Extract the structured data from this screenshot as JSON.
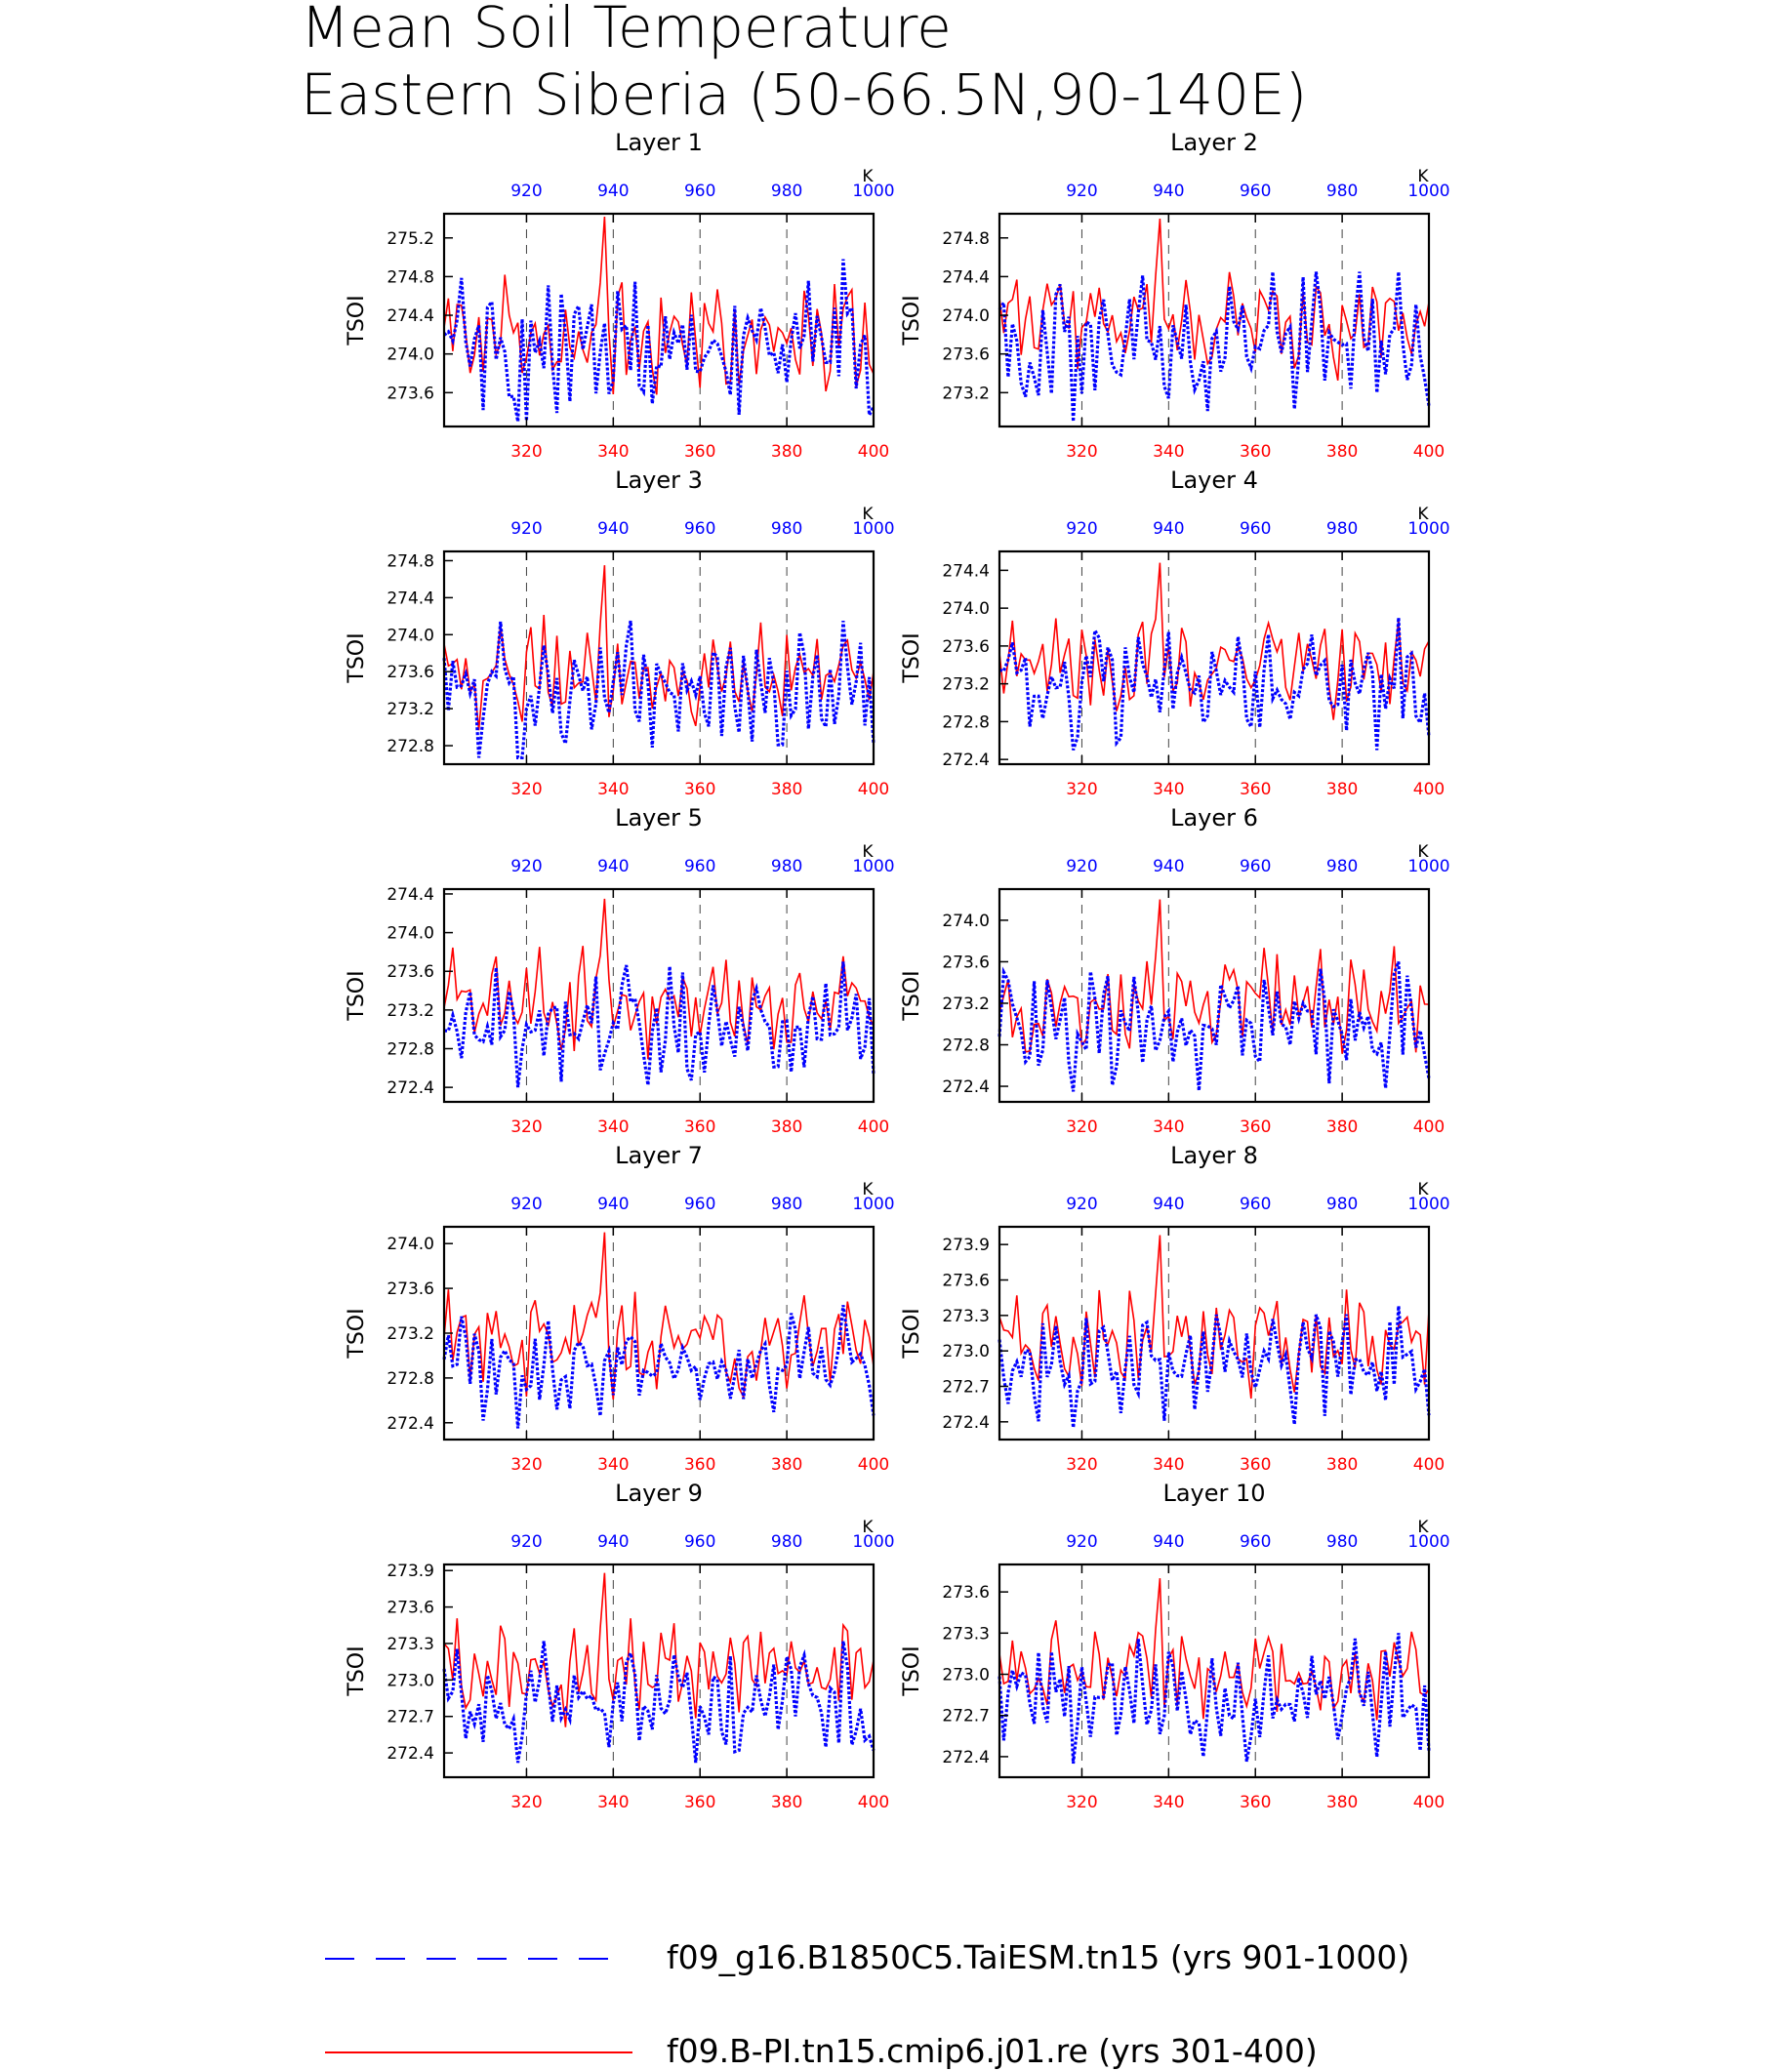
{
  "title_line1": "Mean Soil Temperature",
  "title_line2": "Eastern Siberia (50-66.5N,90-140E)",
  "legend": [
    {
      "label": "f09_g16.B1850C5.TaiESM.tn15 (yrs 901-1000)",
      "color": "#0000ff",
      "style": "dashed"
    },
    {
      "label": "f09.B-PI.tn15.cmip6.j01.re (yrs 301-400)",
      "color": "#ff0000",
      "style": "solid"
    }
  ],
  "chart_data": {
    "type": "line",
    "ylabel": "TSOI",
    "top_axis_unit": "K",
    "bottom_axis": {
      "range": [
        301,
        400
      ],
      "ticks": [
        320,
        340,
        360,
        380,
        400
      ],
      "color": "#ff0000"
    },
    "top_axis": {
      "range": [
        901,
        1000
      ],
      "ticks": [
        920,
        940,
        960,
        980,
        1000
      ],
      "color": "#0000ff"
    },
    "grid": "dashed vertical lines at 320, 340, 360, 380",
    "panels": [
      {
        "title": "Layer 1",
        "ylim": [
          273.25,
          275.45
        ],
        "yticks": [
          273.6,
          274.0,
          274.4,
          274.8,
          275.2
        ],
        "red_base": 274.18,
        "red_spike": 275.42,
        "blue_base": 274.08,
        "blue_min": 273.3,
        "blue_max": 274.98
      },
      {
        "title": "Layer 2",
        "ylim": [
          272.85,
          275.05
        ],
        "yticks": [
          273.2,
          273.6,
          274.0,
          274.4,
          274.8
        ],
        "red_base": 273.92,
        "red_spike": 275.0,
        "blue_base": 273.72,
        "blue_min": 272.9,
        "blue_max": 274.45
      },
      {
        "title": "Layer 3",
        "ylim": [
          272.6,
          274.9
        ],
        "yticks": [
          272.8,
          273.2,
          273.6,
          274.0,
          274.4,
          274.8
        ],
        "red_base": 273.6,
        "red_spike": 274.75,
        "blue_base": 273.4,
        "blue_min": 272.67,
        "blue_max": 274.15
      },
      {
        "title": "Layer 4",
        "ylim": [
          272.35,
          274.6
        ],
        "yticks": [
          272.4,
          272.8,
          273.2,
          273.6,
          274.0,
          274.4
        ],
        "red_base": 273.4,
        "red_spike": 274.48,
        "blue_base": 273.2,
        "blue_min": 272.5,
        "blue_max": 273.9
      },
      {
        "title": "Layer 5",
        "ylim": [
          272.25,
          274.45
        ],
        "yticks": [
          272.4,
          272.8,
          273.2,
          273.6,
          274.0,
          274.4
        ],
        "red_base": 273.28,
        "red_spike": 274.35,
        "blue_base": 273.05,
        "blue_min": 272.4,
        "blue_max": 273.7
      },
      {
        "title": "Layer 6",
        "ylim": [
          272.25,
          274.3
        ],
        "yticks": [
          272.4,
          272.8,
          273.2,
          273.6,
          274.0
        ],
        "red_base": 273.2,
        "red_spike": 274.2,
        "blue_base": 272.98,
        "blue_min": 272.35,
        "blue_max": 273.6
      },
      {
        "title": "Layer 7",
        "ylim": [
          272.25,
          274.15
        ],
        "yticks": [
          272.4,
          272.8,
          273.2,
          273.6,
          274.0
        ],
        "red_base": 273.12,
        "red_spike": 274.1,
        "blue_base": 272.92,
        "blue_min": 272.35,
        "blue_max": 273.45
      },
      {
        "title": "Layer 8",
        "ylim": [
          272.25,
          274.05
        ],
        "yticks": [
          272.4,
          272.7,
          273.0,
          273.3,
          273.6,
          273.9
        ],
        "red_base": 273.08,
        "red_spike": 273.98,
        "blue_base": 272.88,
        "blue_min": 272.35,
        "blue_max": 273.38
      },
      {
        "title": "Layer 9",
        "ylim": [
          272.2,
          273.95
        ],
        "yticks": [
          272.4,
          272.7,
          273.0,
          273.3,
          273.6,
          273.9
        ],
        "red_base": 273.05,
        "red_spike": 273.88,
        "blue_base": 272.82,
        "blue_min": 272.32,
        "blue_max": 273.32
      },
      {
        "title": "Layer 10",
        "ylim": [
          272.25,
          273.8
        ],
        "yticks": [
          272.4,
          272.7,
          273.0,
          273.3,
          273.6
        ],
        "red_base": 273.02,
        "red_spike": 273.7,
        "blue_base": 272.82,
        "blue_min": 272.35,
        "blue_max": 273.3
      }
    ]
  }
}
